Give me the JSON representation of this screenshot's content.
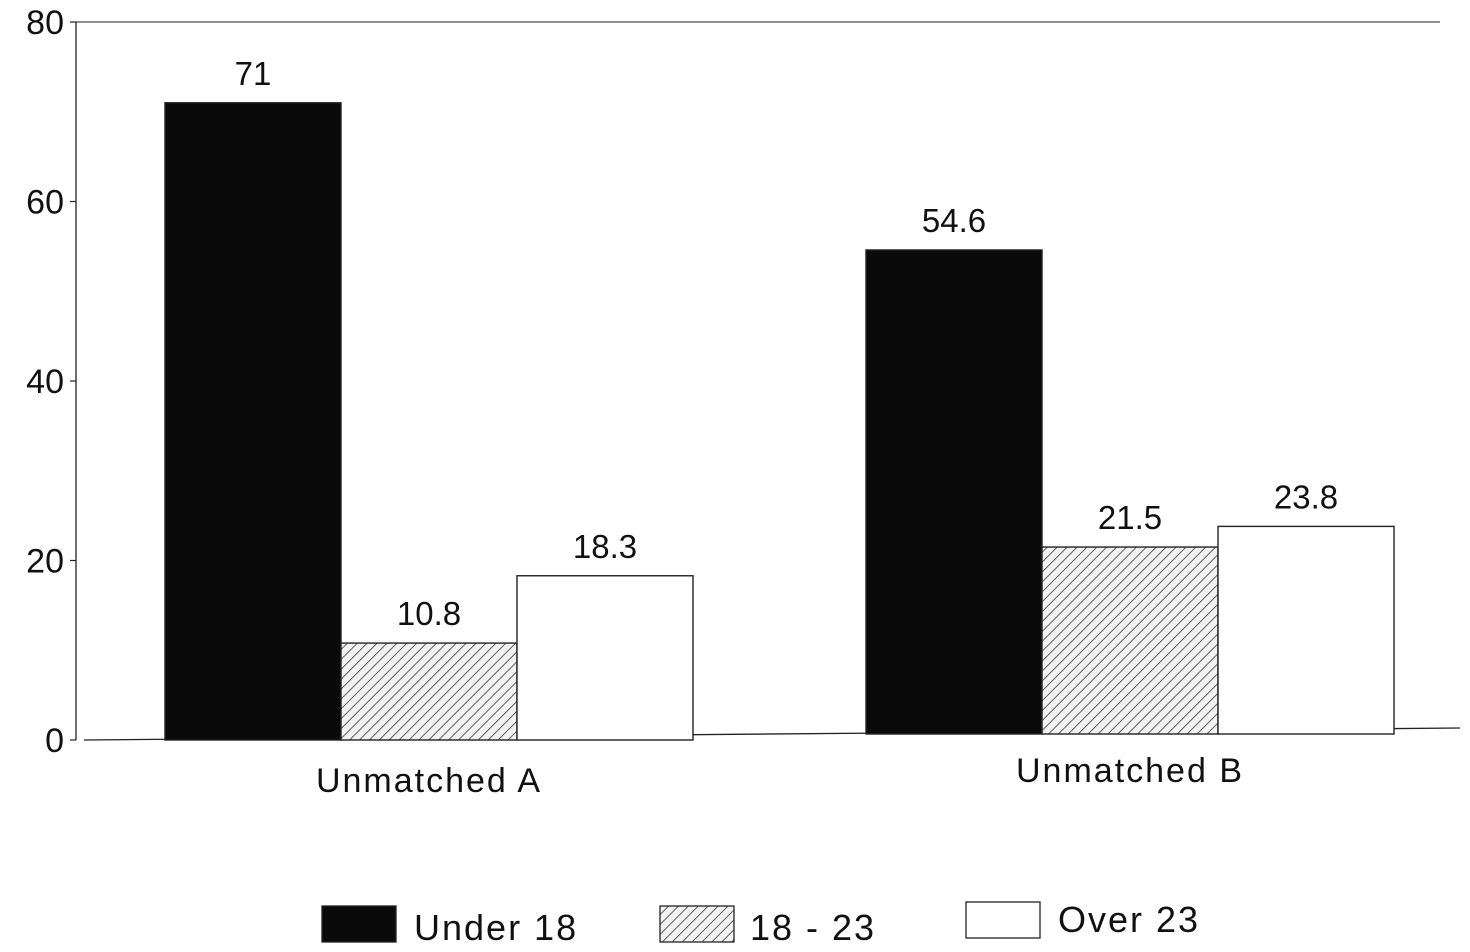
{
  "chart_data": {
    "type": "bar",
    "categories": [
      "Unmatched A",
      "Unmatched B"
    ],
    "series": [
      {
        "name": "Under 18",
        "values": [
          71,
          54.6
        ],
        "labels": [
          "71",
          "54.6"
        ],
        "fill": "solid-black"
      },
      {
        "name": "18 - 23",
        "values": [
          10.8,
          21.5
        ],
        "labels": [
          "10.8",
          "21.5"
        ],
        "fill": "hatched"
      },
      {
        "name": "Over 23",
        "values": [
          18.3,
          23.8
        ],
        "labels": [
          "18.3",
          "23.8"
        ],
        "fill": "white"
      }
    ],
    "y_ticks": [
      "0",
      "20",
      "40",
      "60",
      "80"
    ],
    "ylim": [
      0,
      80
    ],
    "title": "",
    "xlabel": "",
    "ylabel": "",
    "grid": false,
    "legend_position": "bottom",
    "colors": {
      "under_18": "#0a0a0a",
      "hatch_line": "#3a3a3a",
      "hatch_bg": "#f2f2f2",
      "over_23": "#ffffff",
      "axis": "#222222"
    }
  }
}
